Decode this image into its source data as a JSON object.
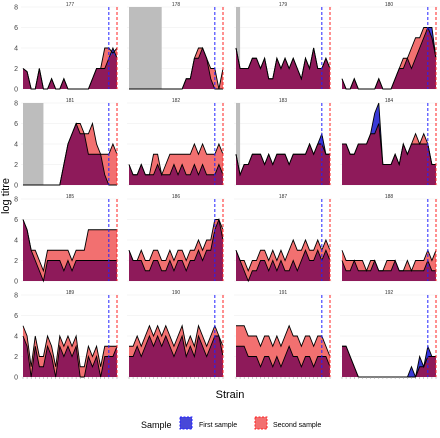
{
  "chart_data": {
    "type": "area",
    "xlabel": "Strain",
    "ylabel": "log titre",
    "ylim": [
      0,
      8
    ],
    "yticks": [
      0,
      2,
      4,
      6,
      8
    ],
    "n_strains": 24,
    "grid": true,
    "legend": {
      "placement": "bottom",
      "title": "Sample",
      "entries": [
        {
          "label": "First sample",
          "fill": "#3a3ad6",
          "line": "#2222ff"
        },
        {
          "label": "Second sample",
          "fill": "#f27070",
          "line": "#ff2222"
        }
      ]
    },
    "overlap_color": "#8e1a5a",
    "shade_color": "#bdbdbd",
    "panels": [
      {
        "id": "177",
        "shade": null,
        "first_line": 21,
        "second_line": 23,
        "first": [
          2,
          1.7,
          0,
          0,
          2,
          0,
          0,
          1,
          0,
          0,
          1,
          0,
          0,
          0,
          0,
          0,
          0,
          1,
          2,
          2,
          2,
          3,
          4,
          3
        ],
        "second": [
          2,
          1.7,
          0,
          0,
          2,
          0,
          0,
          1,
          0,
          0,
          1,
          0,
          0,
          0,
          0,
          0,
          0,
          1,
          2,
          2,
          4,
          4,
          3.5,
          4
        ]
      },
      {
        "id": "178",
        "shade": [
          0,
          8
        ],
        "first_line": 21,
        "second_line": 23,
        "first": [
          0,
          0,
          0,
          0,
          0,
          0,
          0,
          0,
          0,
          0,
          0,
          0,
          0,
          0,
          1,
          1,
          3,
          3,
          4,
          3,
          1,
          0,
          0,
          0
        ],
        "second": [
          0,
          0,
          0,
          0,
          0,
          0,
          0,
          0,
          0,
          0,
          0,
          0,
          0,
          0,
          1,
          1,
          3,
          4,
          4,
          3,
          2,
          2,
          0,
          2
        ]
      },
      {
        "id": "179",
        "shade": [
          0,
          1
        ],
        "first_line": 21,
        "second_line": 23,
        "first": [
          4,
          2,
          2,
          2,
          3,
          3,
          2,
          3,
          1,
          1,
          3,
          2,
          3,
          2,
          3,
          2,
          1,
          3,
          2,
          4,
          2,
          2,
          3,
          2
        ],
        "second": [
          4,
          2,
          2,
          2,
          3,
          3,
          2,
          3,
          1,
          1,
          3,
          2,
          3,
          2,
          3,
          2,
          1,
          3,
          2,
          4,
          2,
          2,
          3,
          2
        ]
      },
      {
        "id": "180",
        "shade": null,
        "first_line": 21,
        "second_line": 23,
        "first": [
          1,
          0,
          0,
          1,
          0,
          0,
          0,
          0,
          0,
          1,
          0,
          0,
          0,
          1,
          2,
          2,
          3,
          2,
          3,
          4,
          5,
          6,
          6,
          3
        ],
        "second": [
          1,
          0,
          0,
          1,
          0,
          0,
          0,
          0,
          0,
          1,
          0,
          0,
          0,
          1,
          2,
          3,
          3,
          4,
          5,
          5,
          6,
          6,
          5,
          3
        ]
      },
      {
        "id": "181",
        "shade": [
          0,
          5
        ],
        "first_line": 21,
        "second_line": 23,
        "first": [
          0,
          0,
          0,
          0,
          0,
          0,
          0,
          0,
          0,
          0,
          2,
          4,
          5,
          6,
          5,
          5,
          3,
          3,
          3,
          3,
          1,
          0,
          0,
          0
        ],
        "second": [
          0,
          0,
          0,
          0,
          0,
          0,
          0,
          0,
          0,
          0,
          2,
          4,
          5,
          6,
          6,
          5,
          5,
          6,
          4,
          3,
          3,
          3,
          4,
          3
        ]
      },
      {
        "id": "182",
        "shade": null,
        "first_line": 21,
        "second_line": 23,
        "first": [
          2,
          1,
          1,
          2,
          1,
          1,
          1,
          2,
          1,
          1,
          1,
          2,
          1,
          2,
          1,
          1,
          2,
          1,
          2,
          1,
          1,
          1,
          2,
          1
        ],
        "second": [
          2,
          1,
          1,
          2,
          1,
          1,
          3,
          3,
          1,
          2,
          3,
          3,
          3,
          3,
          3,
          3,
          4,
          3,
          4,
          3,
          3,
          3,
          4,
          3
        ]
      },
      {
        "id": "183",
        "shade": [
          0,
          1
        ],
        "first_line": 21,
        "second_line": 23,
        "first": [
          3,
          1,
          2,
          2,
          3,
          3,
          3,
          2,
          3,
          2,
          3,
          3,
          3,
          2,
          3,
          3,
          3,
          3,
          4,
          3,
          4,
          5,
          3,
          3
        ],
        "second": [
          3,
          1,
          2,
          2,
          3,
          3,
          3,
          2,
          3,
          2,
          3,
          3,
          3,
          2,
          3,
          3,
          3,
          3,
          4,
          3,
          4,
          4,
          3,
          3
        ]
      },
      {
        "id": "184",
        "shade": null,
        "first_line": 21,
        "second_line": 23,
        "first": [
          4,
          4,
          3,
          3,
          4,
          4,
          4,
          5,
          7,
          8,
          2,
          2,
          2,
          3,
          2,
          4,
          3,
          4,
          4,
          4,
          4,
          4,
          2,
          2
        ],
        "second": [
          4,
          4,
          3,
          3,
          4,
          4,
          4,
          5,
          5,
          6,
          2,
          2,
          2,
          3,
          2,
          4,
          3,
          4,
          5,
          4,
          5,
          4,
          2,
          2
        ]
      },
      {
        "id": "185",
        "shade": null,
        "first_line": 21,
        "second_line": 23,
        "first": [
          6,
          5,
          3,
          2,
          1,
          0,
          2,
          2,
          2,
          2,
          1,
          2,
          1,
          2,
          2,
          2,
          2,
          2,
          2,
          2,
          2,
          2,
          2,
          2
        ],
        "second": [
          6,
          5,
          3,
          3,
          2,
          1,
          3,
          3,
          3,
          3,
          3,
          3,
          2,
          3,
          3,
          3,
          5,
          5,
          5,
          5,
          5,
          5,
          5,
          5
        ]
      },
      {
        "id": "186",
        "shade": null,
        "first_line": 21,
        "second_line": 23,
        "first": [
          3,
          2,
          2,
          2,
          1,
          1,
          2,
          2,
          1,
          1,
          2,
          1,
          2,
          2,
          1,
          2,
          2,
          3,
          2,
          3,
          3,
          5,
          6,
          4
        ],
        "second": [
          3,
          2,
          2,
          3,
          2,
          2,
          3,
          3,
          2,
          2,
          3,
          2,
          3,
          3,
          2,
          3,
          3,
          4,
          3,
          4,
          4,
          6,
          6,
          5
        ]
      },
      {
        "id": "187",
        "shade": null,
        "first_line": 21,
        "second_line": 23,
        "first": [
          3,
          2,
          1,
          0,
          1,
          1,
          2,
          2,
          1,
          2,
          1,
          2,
          1,
          1,
          2,
          1,
          2,
          3,
          2,
          2,
          3,
          2,
          3,
          2
        ],
        "second": [
          3,
          2,
          2,
          1,
          2,
          2,
          3,
          3,
          2,
          3,
          2,
          3,
          2,
          3,
          4,
          3,
          3,
          4,
          3,
          3,
          4,
          3,
          4,
          3
        ]
      },
      {
        "id": "188",
        "shade": null,
        "first_line": 21,
        "second_line": 23,
        "first": [
          2,
          1,
          1,
          2,
          1,
          1,
          1,
          1,
          2,
          1,
          1,
          1,
          1,
          2,
          1,
          1,
          1,
          1,
          1,
          1,
          1,
          2,
          1,
          1
        ],
        "second": [
          3,
          2,
          2,
          2,
          2,
          2,
          1,
          2,
          2,
          1,
          1,
          2,
          2,
          2,
          1,
          1,
          2,
          1,
          2,
          2,
          2,
          3,
          2,
          3
        ]
      },
      {
        "id": "189",
        "shade": null,
        "first_line": 21,
        "second_line": 23,
        "first": [
          4,
          3,
          0,
          3,
          1,
          1,
          3,
          2,
          0,
          3,
          2,
          3,
          2,
          3,
          0,
          0,
          2,
          1,
          2,
          0,
          2,
          2,
          2,
          3
        ],
        "second": [
          5,
          4,
          1,
          4,
          2,
          2,
          4,
          3,
          1,
          4,
          3,
          4,
          3,
          4,
          1,
          1,
          3,
          2,
          3,
          1,
          3,
          3,
          3,
          3
        ]
      },
      {
        "id": "190",
        "shade": null,
        "first_line": 21,
        "second_line": 23,
        "first": [
          2,
          2,
          3,
          2,
          3,
          4,
          3,
          4,
          3,
          4,
          3,
          2,
          3,
          4,
          2,
          3,
          2,
          4,
          3,
          2,
          3,
          4,
          4,
          2
        ],
        "second": [
          3,
          3,
          4,
          3,
          4,
          5,
          4,
          5,
          4,
          5,
          4,
          3,
          4,
          5,
          3,
          4,
          3,
          5,
          4,
          3,
          4,
          5,
          4,
          3
        ]
      },
      {
        "id": "191",
        "shade": null,
        "first_line": 21,
        "second_line": 23,
        "first": [
          3,
          3,
          3,
          2,
          2,
          2,
          1,
          2,
          2,
          1,
          2,
          1,
          2,
          3,
          2,
          2,
          1,
          2,
          2,
          1,
          2,
          2,
          2,
          1
        ],
        "second": [
          5,
          5,
          5,
          4,
          4,
          4,
          3,
          4,
          4,
          3,
          4,
          3,
          4,
          5,
          4,
          4,
          3,
          4,
          4,
          3,
          4,
          4,
          3,
          2
        ]
      },
      {
        "id": "192",
        "shade": null,
        "first_line": 21,
        "second_line": 23,
        "first": [
          3,
          3,
          2,
          1,
          0,
          0,
          0,
          0,
          0,
          0,
          0,
          0,
          0,
          0,
          0,
          0,
          0,
          1,
          0,
          2,
          1,
          3,
          2,
          2
        ],
        "second": [
          3,
          3,
          2,
          1,
          0,
          0,
          0,
          0,
          0,
          0,
          0,
          0,
          0,
          0,
          0,
          0,
          0,
          0,
          0,
          1,
          1,
          2,
          2,
          2
        ]
      }
    ]
  }
}
